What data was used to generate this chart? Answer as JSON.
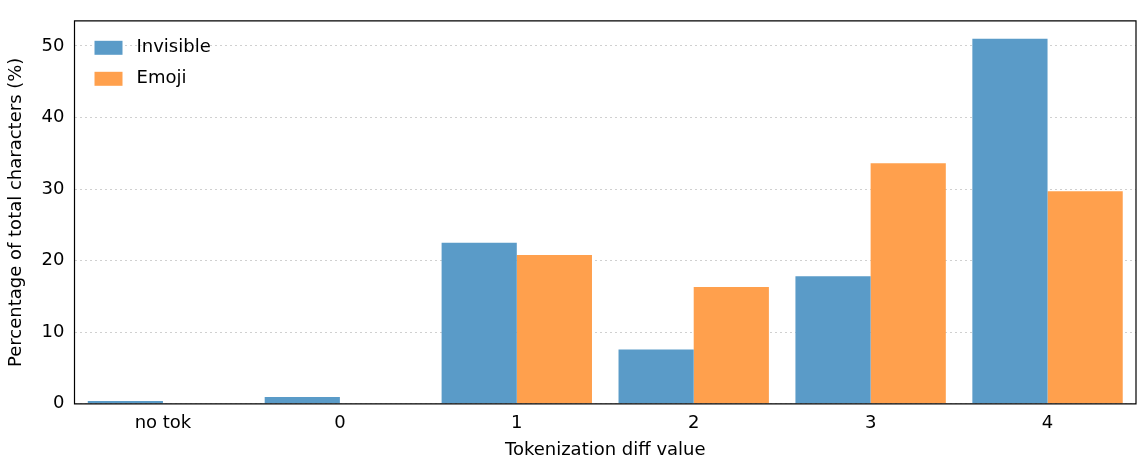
{
  "chart_data": {
    "type": "bar",
    "xlabel": "Tokenization diff value",
    "ylabel": "Percentage of total characters (%)",
    "categories": [
      "no tok",
      "0",
      "1",
      "2",
      "3",
      "4"
    ],
    "series": [
      {
        "name": "Invisible",
        "color": "#5a9bc8",
        "values": [
          0.4,
          0.95,
          22.5,
          7.6,
          17.8,
          51.0
        ]
      },
      {
        "name": "Emoji",
        "color": "#ffa04d",
        "values": [
          0,
          0,
          20.8,
          16.3,
          33.6,
          29.7
        ]
      }
    ],
    "ylim": [
      0,
      53.5
    ],
    "yticks": [
      0,
      10,
      20,
      30,
      40,
      50
    ],
    "grid": "y",
    "legend": "top left"
  }
}
